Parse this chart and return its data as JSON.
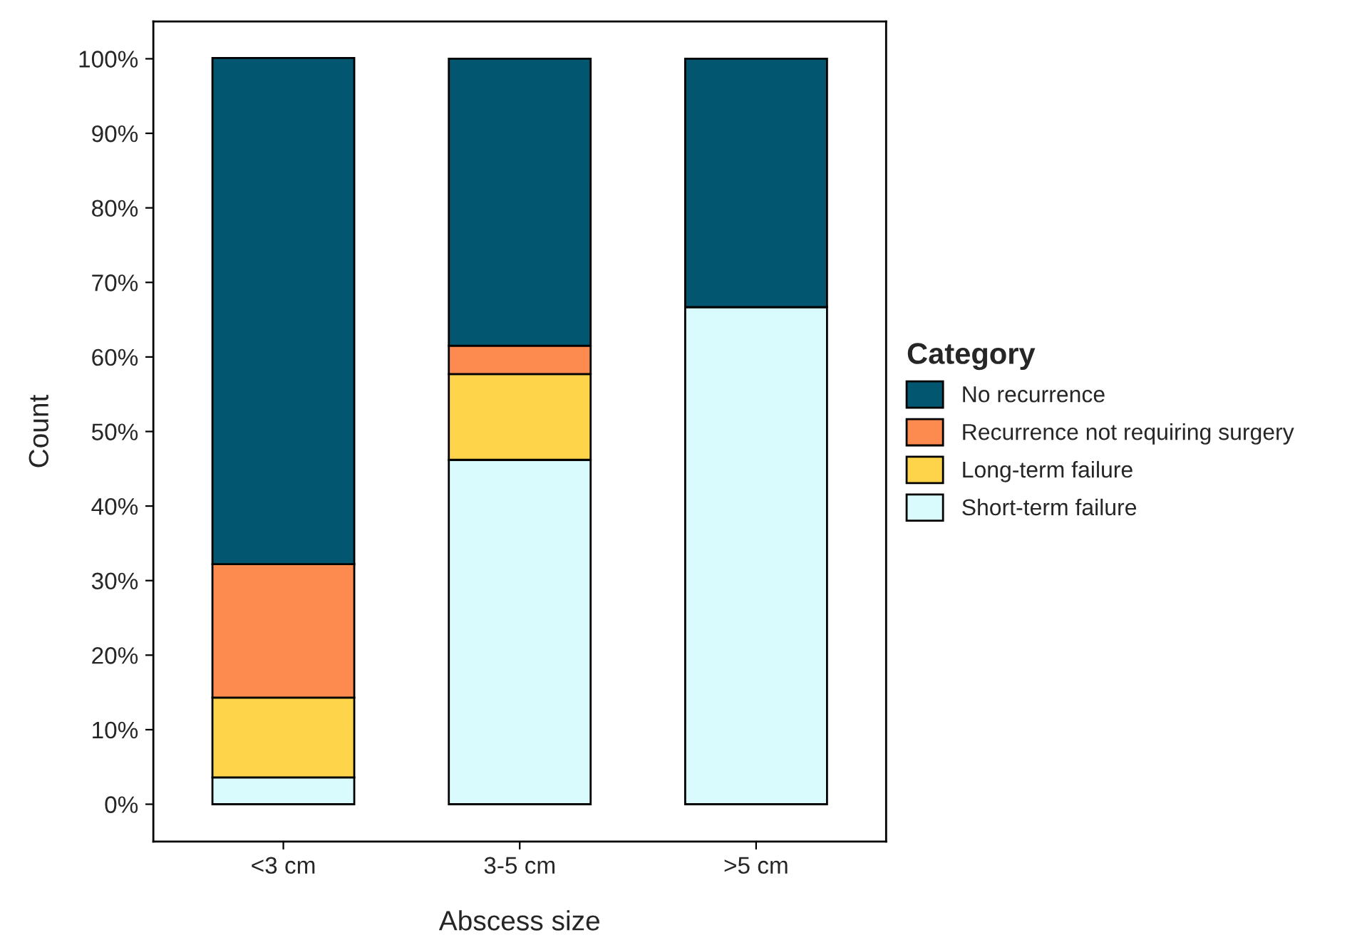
{
  "chart_data": {
    "type": "bar",
    "stacked": true,
    "xlabel": "Abscess size",
    "ylabel": "Count",
    "legend_title": "Category",
    "legend": "right",
    "categories": [
      "<3 cm",
      "3-5 cm",
      ">5 cm"
    ],
    "series": [
      {
        "name": "Short-term failure",
        "color": "#d9fbfd",
        "values": [
          3.6,
          46.2,
          66.7
        ]
      },
      {
        "name": "Long-term failure",
        "color": "#fed54a",
        "values": [
          10.7,
          11.5,
          0
        ]
      },
      {
        "name": "Recurrence not requiring surgery",
        "color": "#fd8a4f",
        "values": [
          17.9,
          3.8,
          0
        ]
      },
      {
        "name": "No recurrence",
        "color": "#03566f",
        "values": [
          67.9,
          38.5,
          33.3
        ]
      }
    ],
    "ylim": [
      -5,
      105
    ],
    "yticks": [
      {
        "value": 0,
        "label": "0%"
      },
      {
        "value": 10,
        "label": "10%"
      },
      {
        "value": 20,
        "label": "20%"
      },
      {
        "value": 30,
        "label": "30%"
      },
      {
        "value": 40,
        "label": "40%"
      },
      {
        "value": 50,
        "label": "50%"
      },
      {
        "value": 60,
        "label": "60%"
      },
      {
        "value": 70,
        "label": "70%"
      },
      {
        "value": 80,
        "label": "80%"
      },
      {
        "value": 90,
        "label": "90%"
      },
      {
        "value": 100,
        "label": "100%"
      }
    ],
    "grid": false
  }
}
